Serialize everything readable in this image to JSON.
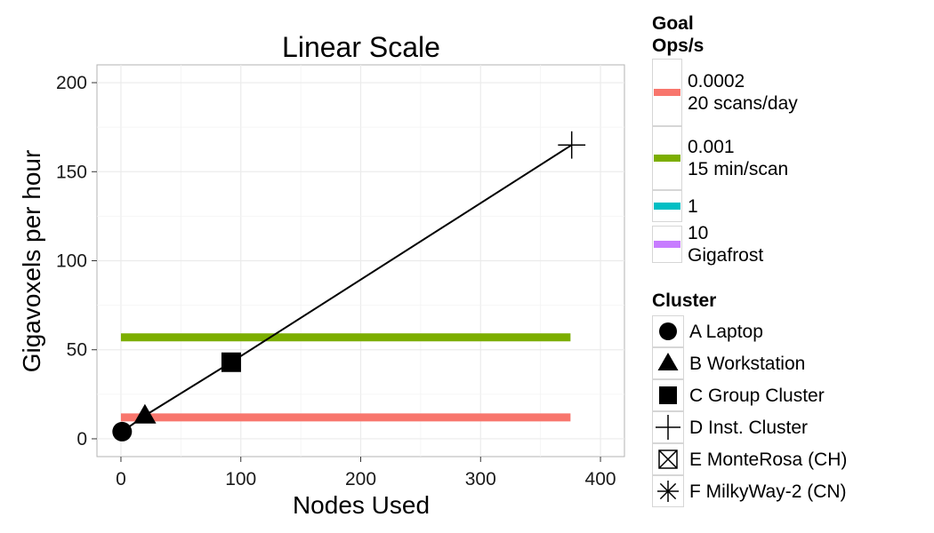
{
  "chart_data": {
    "type": "line",
    "title": "Linear Scale",
    "xlabel": "Nodes Used",
    "ylabel": "Gigavoxels per hour",
    "xlim": [
      -20,
      420
    ],
    "ylim": [
      -10,
      210
    ],
    "x_ticks": [
      0,
      100,
      200,
      300,
      400
    ],
    "y_ticks": [
      0,
      50,
      100,
      150,
      200
    ],
    "grid": true,
    "legend_position": "right",
    "goal_lines": [
      {
        "label": "0.0002\n20 scans/day",
        "color": "#F8766D",
        "y": 12,
        "x": [
          0,
          375
        ],
        "drawn": true
      },
      {
        "label": "0.001\n15 min/scan",
        "color": "#7CAE00",
        "y": 57,
        "x": [
          0,
          375
        ],
        "drawn": true
      },
      {
        "label": "1",
        "color": "#00BFC4",
        "drawn": false
      },
      {
        "label": "10\n Gigafrost",
        "color": "#C77CFF",
        "drawn": false
      }
    ],
    "series": [
      {
        "values": [
          {
            "cluster": "A Laptop",
            "x": 1,
            "y": 4
          },
          {
            "cluster": "B Workstation",
            "x": 20,
            "y": 13
          },
          {
            "cluster": "C Group Cluster",
            "x": 92,
            "y": 43
          },
          {
            "cluster": "D Inst. Cluster",
            "x": 376,
            "y": 165
          }
        ]
      }
    ],
    "clusters": [
      {
        "label": "A Laptop",
        "shape": "circle"
      },
      {
        "label": "B Workstation",
        "shape": "triangle"
      },
      {
        "label": "C Group Cluster",
        "shape": "square"
      },
      {
        "label": "D Inst. Cluster",
        "shape": "plus"
      },
      {
        "label": "E MonteRosa (CH)",
        "shape": "boxcross"
      },
      {
        "label": "F MilkyWay-2 (CN)",
        "shape": "asterisk"
      }
    ]
  },
  "legend": {
    "goal_title": "Goal\nOps/s",
    "cluster_title": "Cluster"
  }
}
